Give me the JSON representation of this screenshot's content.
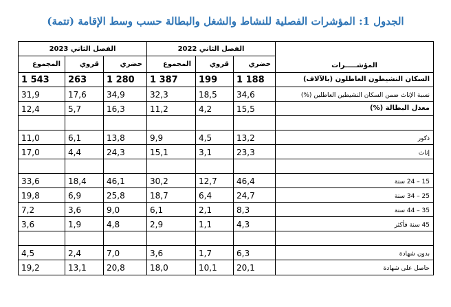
{
  "title": "الجدول 1: المؤشرات الفصلية للنشاط والشغل والبطالة حسب وسط الإقامة (تتمة)",
  "headers": {
    "indicators": "المؤشـــــرات",
    "period_2023": "الفصل الثاني 2023",
    "period_2022": "الفصل الثاني 2022",
    "total": "المجموع",
    "rural": "قروي",
    "urban": "حضري"
  },
  "rows": [
    {
      "label": "السكان النشيطون العاطلون (بالآلاف)",
      "bold": true,
      "big": true,
      "v": [
        "1 543",
        "263",
        "1 280",
        "1 387",
        "199",
        "1 188"
      ]
    },
    {
      "label": "نسبة الإناث ضمن السكان النشيطين العاطلين (%)",
      "bold": false,
      "big": false,
      "v": [
        "31,9",
        "17,6",
        "34,9",
        "32,3",
        "18,5",
        "34,6"
      ]
    },
    {
      "label": "معدل البطالة (%)",
      "bold": true,
      "big": false,
      "v": [
        "12,4",
        "5,7",
        "16,3",
        "11,2",
        "4,2",
        "15,5"
      ]
    },
    {
      "label": "",
      "bold": false,
      "big": false,
      "v": [
        "",
        "",
        "",
        "",
        "",
        ""
      ]
    },
    {
      "label": "ذكور",
      "bold": false,
      "big": false,
      "v": [
        "11,0",
        "6,1",
        "13,8",
        "9,9",
        "4,5",
        "13,2"
      ]
    },
    {
      "label": "إناث",
      "bold": false,
      "big": false,
      "v": [
        "17,0",
        "4,4",
        "24,3",
        "15,1",
        "3,1",
        "23,3"
      ]
    },
    {
      "label": "",
      "bold": false,
      "big": false,
      "v": [
        "",
        "",
        "",
        "",
        "",
        ""
      ]
    },
    {
      "label": "15 – 24 سنة",
      "bold": false,
      "big": false,
      "v": [
        "33,6",
        "18,4",
        "46,1",
        "30,2",
        "12,7",
        "46,4"
      ]
    },
    {
      "label": "25 – 34 سنة",
      "bold": false,
      "big": false,
      "v": [
        "19,8",
        "6,9",
        "25,8",
        "18,7",
        "6,4",
        "24,7"
      ]
    },
    {
      "label": "35 – 44 سنة",
      "bold": false,
      "big": false,
      "v": [
        "7,2",
        "3,6",
        "9,0",
        "6,1",
        "2,1",
        "8,3"
      ]
    },
    {
      "label": "45 سنة فأكثر",
      "bold": false,
      "big": false,
      "v": [
        "3,6",
        "1,9",
        "4,8",
        "2,9",
        "1,1",
        "4,3"
      ]
    },
    {
      "label": "",
      "bold": false,
      "big": false,
      "v": [
        "",
        "",
        "",
        "",
        "",
        ""
      ]
    },
    {
      "label": "بدون شهادة",
      "bold": false,
      "big": false,
      "v": [
        "4,5",
        "2,4",
        "7,0",
        "3,6",
        "1,7",
        "6,3"
      ]
    },
    {
      "label": "حاصل على شهادة",
      "bold": false,
      "big": false,
      "v": [
        "19,2",
        "13,1",
        "20,8",
        "18,0",
        "10,1",
        "20,1"
      ]
    }
  ]
}
